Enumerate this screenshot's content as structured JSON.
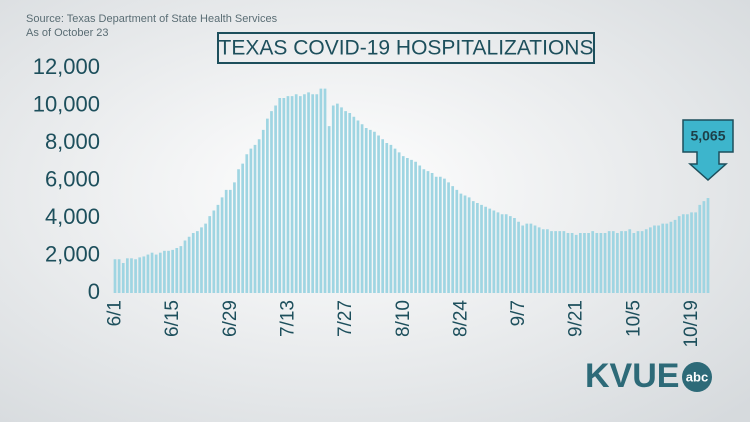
{
  "chart_data": {
    "type": "bar",
    "source": "Source: Texas Department of State Health Services",
    "subtitle": "As of October 23",
    "title": "TEXAS COVID-19 HOSPITALIZATIONS",
    "logo": "KVUE",
    "logo_badge": "abc",
    "color": "#9fd5e2",
    "grid": false,
    "ylim": [
      0,
      12000
    ],
    "yticks": [
      0,
      {
        "value": 2000,
        "label": "2,000"
      },
      {
        "value": 4000,
        "label": "4,000"
      },
      {
        "value": 6000,
        "label": "6,000"
      },
      {
        "value": 8000,
        "label": "8,000"
      },
      {
        "value": 10000,
        "label": "10,000"
      },
      {
        "value": 12000,
        "label": "12,000"
      }
    ],
    "categories": [
      "6/1",
      null,
      null,
      null,
      null,
      null,
      null,
      null,
      null,
      null,
      null,
      null,
      null,
      null,
      "6/15",
      null,
      null,
      null,
      null,
      null,
      null,
      null,
      null,
      null,
      null,
      null,
      null,
      null,
      "6/29",
      null,
      null,
      null,
      null,
      null,
      null,
      null,
      null,
      null,
      null,
      null,
      null,
      null,
      "7/13",
      null,
      null,
      null,
      null,
      null,
      null,
      null,
      null,
      null,
      null,
      null,
      null,
      null,
      "7/27",
      null,
      null,
      null,
      null,
      null,
      null,
      null,
      null,
      null,
      null,
      null,
      null,
      null,
      "8/10",
      null,
      null,
      null,
      null,
      null,
      null,
      null,
      null,
      null,
      null,
      null,
      null,
      null,
      "8/24",
      null,
      null,
      null,
      null,
      null,
      null,
      null,
      null,
      null,
      null,
      null,
      null,
      null,
      "9/7",
      null,
      null,
      null,
      null,
      null,
      null,
      null,
      null,
      null,
      null,
      null,
      null,
      null,
      "9/21",
      null,
      null,
      null,
      null,
      null,
      null,
      null,
      null,
      null,
      null,
      null,
      null,
      null,
      "10/5",
      null,
      null,
      null,
      null,
      null,
      null,
      null,
      null,
      null,
      null,
      null,
      null,
      null,
      "10/19",
      null,
      null,
      null,
      null
    ],
    "values": [
      1800,
      1800,
      1600,
      1850,
      1850,
      1800,
      1900,
      1950,
      2050,
      2150,
      2050,
      2150,
      2250,
      2250,
      2300,
      2400,
      2500,
      2800,
      3000,
      3200,
      3300,
      3500,
      3700,
      4100,
      4400,
      4700,
      5100,
      5500,
      5500,
      5900,
      6600,
      6900,
      7400,
      7700,
      7900,
      8200,
      8700,
      9300,
      9700,
      10000,
      10400,
      10400,
      10500,
      10500,
      10600,
      10500,
      10600,
      10700,
      10600,
      10600,
      10900,
      10900,
      8900,
      10000,
      10100,
      9900,
      9700,
      9600,
      9400,
      9200,
      9000,
      8800,
      8700,
      8600,
      8400,
      8200,
      8000,
      7900,
      7700,
      7500,
      7300,
      7200,
      7100,
      7000,
      6800,
      6600,
      6500,
      6400,
      6200,
      6200,
      6100,
      5900,
      5700,
      5500,
      5300,
      5200,
      5100,
      4900,
      4800,
      4700,
      4600,
      4500,
      4400,
      4300,
      4200,
      4200,
      4100,
      4000,
      3800,
      3600,
      3700,
      3700,
      3600,
      3500,
      3400,
      3400,
      3300,
      3300,
      3300,
      3300,
      3200,
      3200,
      3100,
      3200,
      3200,
      3200,
      3300,
      3200,
      3200,
      3200,
      3300,
      3300,
      3200,
      3300,
      3300,
      3400,
      3200,
      3300,
      3300,
      3400,
      3500,
      3600,
      3600,
      3700,
      3700,
      3800,
      3900,
      4100,
      4200,
      4200,
      4300,
      4300,
      4700,
      4900,
      5065
    ],
    "value_labels": [
      null,
      null,
      null,
      null,
      null,
      null,
      null,
      null,
      null,
      null,
      null,
      null,
      null,
      null,
      null,
      null,
      null,
      null,
      null,
      null,
      null,
      null,
      null,
      null,
      null,
      null,
      null,
      null,
      null,
      null,
      null,
      null,
      null,
      null,
      null,
      null,
      null,
      null,
      null,
      null,
      null,
      null,
      null,
      null,
      null,
      null,
      null,
      null,
      null,
      null,
      null,
      null,
      null,
      null,
      null,
      null,
      null,
      null,
      null,
      null,
      null,
      null,
      null,
      null,
      null,
      null,
      null,
      null,
      null,
      null,
      null,
      null,
      null,
      null,
      null,
      null,
      null,
      null,
      null,
      null,
      null,
      null,
      null,
      null,
      null,
      null,
      null,
      null,
      null,
      null,
      null,
      null,
      null,
      null,
      null,
      null,
      null,
      null,
      null,
      null,
      null,
      null,
      null,
      null,
      null,
      null,
      null,
      null,
      null,
      null,
      null,
      null,
      null,
      null,
      null,
      null,
      null,
      null,
      null,
      null,
      null,
      null,
      null,
      null,
      null,
      null,
      null,
      null,
      null,
      null,
      null,
      null,
      null,
      null,
      null,
      null,
      null,
      null,
      null,
      null,
      null,
      null,
      null,
      null,
      "5,065"
    ]
  }
}
